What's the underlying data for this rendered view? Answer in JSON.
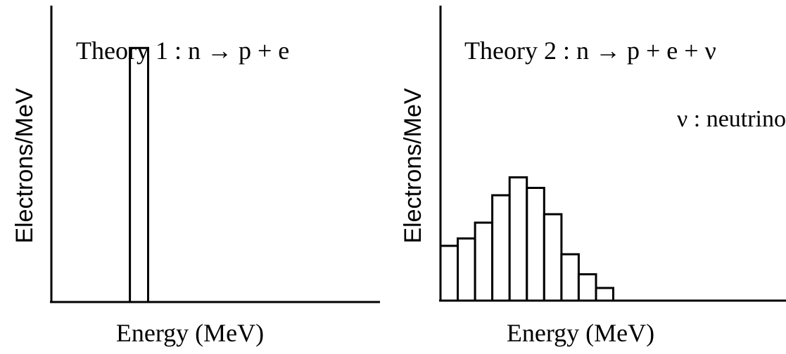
{
  "chart_data": [
    {
      "type": "bar",
      "title": "Theory 1 : n → p + e",
      "xlabel": "Energy (MeV)",
      "ylabel": "Electrons/MeV",
      "xlim": [
        0,
        18
      ],
      "ylim": [
        0,
        14
      ],
      "bars": [
        {
          "x0": 4.3,
          "x1": 5.3,
          "y": 12.0
        }
      ]
    },
    {
      "type": "bar",
      "title": "Theory 2  : n → p + e + ν",
      "annotation": "ν : neutrino",
      "xlabel": "Energy (MeV)",
      "ylabel": "Electrons/MeV",
      "xlim": [
        0,
        20
      ],
      "ylim": [
        0,
        14
      ],
      "bars": [
        {
          "x0": 0.0,
          "x1": 1.0,
          "y": 2.6
        },
        {
          "x0": 1.0,
          "x1": 2.0,
          "y": 2.95
        },
        {
          "x0": 2.0,
          "x1": 3.0,
          "y": 3.7
        },
        {
          "x0": 3.0,
          "x1": 4.0,
          "y": 5.0
        },
        {
          "x0": 4.0,
          "x1": 5.0,
          "y": 5.85
        },
        {
          "x0": 5.0,
          "x1": 6.0,
          "y": 5.35
        },
        {
          "x0": 6.0,
          "x1": 7.0,
          "y": 4.1
        },
        {
          "x0": 7.0,
          "x1": 8.0,
          "y": 2.2
        },
        {
          "x0": 8.0,
          "x1": 9.0,
          "y": 1.25
        },
        {
          "x0": 9.0,
          "x1": 10.0,
          "y": 0.6
        }
      ]
    }
  ]
}
